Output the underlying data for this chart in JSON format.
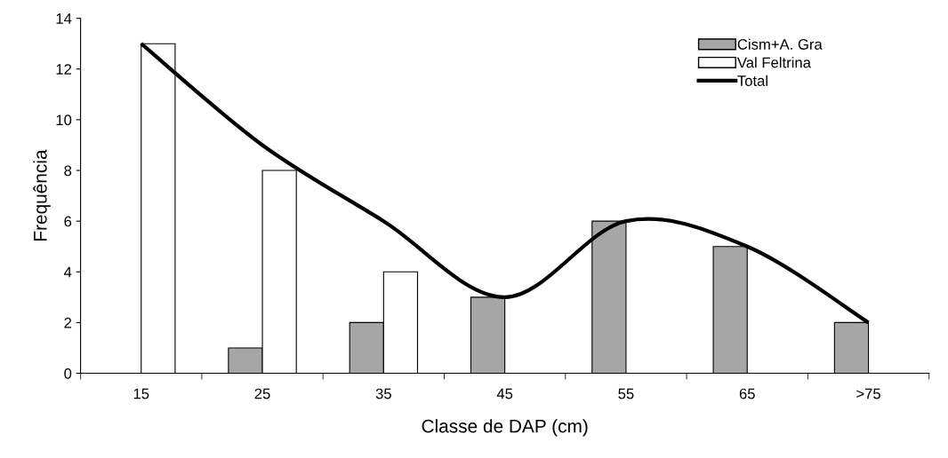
{
  "chart_data": {
    "type": "bar",
    "xlabel": "Classe de DAP (cm)",
    "ylabel": "Frequência",
    "categories": [
      "15",
      "25",
      "35",
      "45",
      "55",
      "65",
      ">75"
    ],
    "series": [
      {
        "name": "Cism+A. Gra",
        "color": "#a6a6a6",
        "values": [
          null,
          1,
          2,
          3,
          6,
          5,
          2
        ]
      },
      {
        "name": "Val Feltrina",
        "color": "#ffffff",
        "values": [
          13,
          8,
          4,
          null,
          null,
          null,
          null
        ]
      },
      {
        "name": "Total",
        "type": "line",
        "color": "#000000",
        "values": [
          13,
          9,
          6,
          3,
          6,
          5,
          2
        ]
      }
    ],
    "ylim": [
      0,
      14
    ],
    "yticks": [
      0,
      2,
      4,
      6,
      8,
      10,
      12,
      14
    ],
    "grid": false,
    "legend": "top right",
    "marker": "none",
    "line_style": "solid"
  }
}
